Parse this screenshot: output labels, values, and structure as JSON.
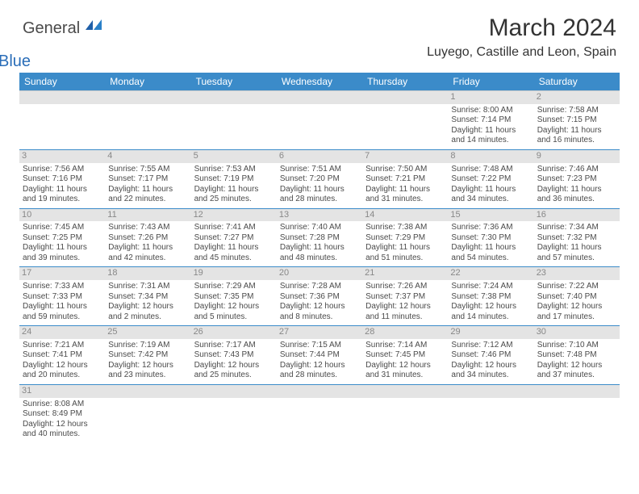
{
  "logo": {
    "general": "General",
    "blue": "Blue"
  },
  "title": "March 2024",
  "location": "Luyego, Castille and Leon, Spain",
  "colors": {
    "header_bg": "#3b8bc9",
    "header_text": "#ffffff",
    "daynum_bg": "#e4e4e4",
    "daynum_text": "#888888",
    "cell_text": "#4a4a4a",
    "row_border": "#3b8bc9",
    "logo_blue": "#2a6db8"
  },
  "weekdays": [
    "Sunday",
    "Monday",
    "Tuesday",
    "Wednesday",
    "Thursday",
    "Friday",
    "Saturday"
  ],
  "weeks": [
    [
      {
        "day": "",
        "lines": []
      },
      {
        "day": "",
        "lines": []
      },
      {
        "day": "",
        "lines": []
      },
      {
        "day": "",
        "lines": []
      },
      {
        "day": "",
        "lines": []
      },
      {
        "day": "1",
        "lines": [
          "Sunrise: 8:00 AM",
          "Sunset: 7:14 PM",
          "Daylight: 11 hours",
          "and 14 minutes."
        ]
      },
      {
        "day": "2",
        "lines": [
          "Sunrise: 7:58 AM",
          "Sunset: 7:15 PM",
          "Daylight: 11 hours",
          "and 16 minutes."
        ]
      }
    ],
    [
      {
        "day": "3",
        "lines": [
          "Sunrise: 7:56 AM",
          "Sunset: 7:16 PM",
          "Daylight: 11 hours",
          "and 19 minutes."
        ]
      },
      {
        "day": "4",
        "lines": [
          "Sunrise: 7:55 AM",
          "Sunset: 7:17 PM",
          "Daylight: 11 hours",
          "and 22 minutes."
        ]
      },
      {
        "day": "5",
        "lines": [
          "Sunrise: 7:53 AM",
          "Sunset: 7:19 PM",
          "Daylight: 11 hours",
          "and 25 minutes."
        ]
      },
      {
        "day": "6",
        "lines": [
          "Sunrise: 7:51 AM",
          "Sunset: 7:20 PM",
          "Daylight: 11 hours",
          "and 28 minutes."
        ]
      },
      {
        "day": "7",
        "lines": [
          "Sunrise: 7:50 AM",
          "Sunset: 7:21 PM",
          "Daylight: 11 hours",
          "and 31 minutes."
        ]
      },
      {
        "day": "8",
        "lines": [
          "Sunrise: 7:48 AM",
          "Sunset: 7:22 PM",
          "Daylight: 11 hours",
          "and 34 minutes."
        ]
      },
      {
        "day": "9",
        "lines": [
          "Sunrise: 7:46 AM",
          "Sunset: 7:23 PM",
          "Daylight: 11 hours",
          "and 36 minutes."
        ]
      }
    ],
    [
      {
        "day": "10",
        "lines": [
          "Sunrise: 7:45 AM",
          "Sunset: 7:25 PM",
          "Daylight: 11 hours",
          "and 39 minutes."
        ]
      },
      {
        "day": "11",
        "lines": [
          "Sunrise: 7:43 AM",
          "Sunset: 7:26 PM",
          "Daylight: 11 hours",
          "and 42 minutes."
        ]
      },
      {
        "day": "12",
        "lines": [
          "Sunrise: 7:41 AM",
          "Sunset: 7:27 PM",
          "Daylight: 11 hours",
          "and 45 minutes."
        ]
      },
      {
        "day": "13",
        "lines": [
          "Sunrise: 7:40 AM",
          "Sunset: 7:28 PM",
          "Daylight: 11 hours",
          "and 48 minutes."
        ]
      },
      {
        "day": "14",
        "lines": [
          "Sunrise: 7:38 AM",
          "Sunset: 7:29 PM",
          "Daylight: 11 hours",
          "and 51 minutes."
        ]
      },
      {
        "day": "15",
        "lines": [
          "Sunrise: 7:36 AM",
          "Sunset: 7:30 PM",
          "Daylight: 11 hours",
          "and 54 minutes."
        ]
      },
      {
        "day": "16",
        "lines": [
          "Sunrise: 7:34 AM",
          "Sunset: 7:32 PM",
          "Daylight: 11 hours",
          "and 57 minutes."
        ]
      }
    ],
    [
      {
        "day": "17",
        "lines": [
          "Sunrise: 7:33 AM",
          "Sunset: 7:33 PM",
          "Daylight: 11 hours",
          "and 59 minutes."
        ]
      },
      {
        "day": "18",
        "lines": [
          "Sunrise: 7:31 AM",
          "Sunset: 7:34 PM",
          "Daylight: 12 hours",
          "and 2 minutes."
        ]
      },
      {
        "day": "19",
        "lines": [
          "Sunrise: 7:29 AM",
          "Sunset: 7:35 PM",
          "Daylight: 12 hours",
          "and 5 minutes."
        ]
      },
      {
        "day": "20",
        "lines": [
          "Sunrise: 7:28 AM",
          "Sunset: 7:36 PM",
          "Daylight: 12 hours",
          "and 8 minutes."
        ]
      },
      {
        "day": "21",
        "lines": [
          "Sunrise: 7:26 AM",
          "Sunset: 7:37 PM",
          "Daylight: 12 hours",
          "and 11 minutes."
        ]
      },
      {
        "day": "22",
        "lines": [
          "Sunrise: 7:24 AM",
          "Sunset: 7:38 PM",
          "Daylight: 12 hours",
          "and 14 minutes."
        ]
      },
      {
        "day": "23",
        "lines": [
          "Sunrise: 7:22 AM",
          "Sunset: 7:40 PM",
          "Daylight: 12 hours",
          "and 17 minutes."
        ]
      }
    ],
    [
      {
        "day": "24",
        "lines": [
          "Sunrise: 7:21 AM",
          "Sunset: 7:41 PM",
          "Daylight: 12 hours",
          "and 20 minutes."
        ]
      },
      {
        "day": "25",
        "lines": [
          "Sunrise: 7:19 AM",
          "Sunset: 7:42 PM",
          "Daylight: 12 hours",
          "and 23 minutes."
        ]
      },
      {
        "day": "26",
        "lines": [
          "Sunrise: 7:17 AM",
          "Sunset: 7:43 PM",
          "Daylight: 12 hours",
          "and 25 minutes."
        ]
      },
      {
        "day": "27",
        "lines": [
          "Sunrise: 7:15 AM",
          "Sunset: 7:44 PM",
          "Daylight: 12 hours",
          "and 28 minutes."
        ]
      },
      {
        "day": "28",
        "lines": [
          "Sunrise: 7:14 AM",
          "Sunset: 7:45 PM",
          "Daylight: 12 hours",
          "and 31 minutes."
        ]
      },
      {
        "day": "29",
        "lines": [
          "Sunrise: 7:12 AM",
          "Sunset: 7:46 PM",
          "Daylight: 12 hours",
          "and 34 minutes."
        ]
      },
      {
        "day": "30",
        "lines": [
          "Sunrise: 7:10 AM",
          "Sunset: 7:48 PM",
          "Daylight: 12 hours",
          "and 37 minutes."
        ]
      }
    ],
    [
      {
        "day": "31",
        "lines": [
          "Sunrise: 8:08 AM",
          "Sunset: 8:49 PM",
          "Daylight: 12 hours",
          "and 40 minutes."
        ]
      },
      {
        "day": "",
        "lines": []
      },
      {
        "day": "",
        "lines": []
      },
      {
        "day": "",
        "lines": []
      },
      {
        "day": "",
        "lines": []
      },
      {
        "day": "",
        "lines": []
      },
      {
        "day": "",
        "lines": []
      }
    ]
  ]
}
